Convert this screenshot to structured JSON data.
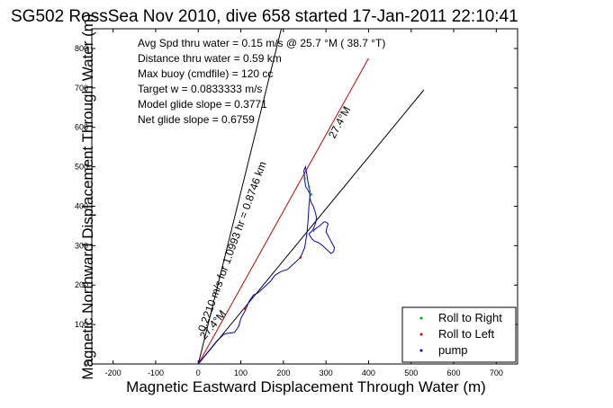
{
  "chart_data": {
    "type": "line",
    "title": "SG502 RossSea Nov 2010, dive 658 started 17-Jan-2011 22:10:41",
    "xlabel": "Magnetic Eastward Displacement Through Water (m)",
    "ylabel": "Magnetic Northward Displacement Through Water (m)",
    "xlim": [
      -250,
      750
    ],
    "ylim": [
      0,
      850
    ],
    "xticks": [
      -200,
      -100,
      0,
      100,
      200,
      300,
      400,
      500,
      600,
      700
    ],
    "yticks": [
      0,
      100,
      200,
      300,
      400,
      500,
      600,
      700,
      800
    ],
    "grid": false,
    "legend_position": "bottom-right",
    "info_lines": [
      "Avg Spd thru water =  0.15 m/s @  25.7 °M ( 38.7 °T)",
      "Distance thru water =  0.59 km",
      "Max buoy (cmdfile) = 120 cc",
      "Target w = 0.0833333 m/s",
      "Model glide slope = 0.3771",
      "Net glide slope = 0.6759"
    ],
    "track_label": "0.2210 m/s for 1.0993 hr = 0.8746 km",
    "heading_labels": [
      "27.4°M",
      "27.4°M"
    ],
    "legend": [
      {
        "label": "Roll to Right",
        "color": "#00aa00"
      },
      {
        "label": "Roll to Left",
        "color": "#dd0000"
      },
      {
        "label": "pump",
        "color": "#0000cc"
      }
    ],
    "series": [
      {
        "color": "#000000",
        "x": [
          0,
          195
        ],
        "y": [
          0,
          850
        ]
      },
      {
        "color": "#000000",
        "x": [
          0,
          530
        ],
        "y": [
          0,
          695
        ]
      },
      {
        "color": "#cc0000",
        "x": [
          0,
          400
        ],
        "y": [
          0,
          775
        ]
      },
      {
        "color": "#0000cc",
        "x": [
          0,
          15,
          30,
          45,
          60,
          70,
          85,
          95,
          100,
          110,
          120,
          130,
          140,
          150,
          160,
          170,
          180,
          195,
          210,
          225,
          240,
          250,
          255,
          258,
          260,
          263,
          258,
          252,
          250,
          248,
          252,
          255,
          258,
          262,
          262,
          265,
          270,
          275,
          278,
          275,
          270,
          265,
          260,
          265,
          272,
          282,
          292,
          302,
          312,
          318,
          320,
          315,
          310,
          305,
          300,
          302,
          305,
          300,
          295,
          290,
          285,
          278,
          272,
          270
        ],
        "y": [
          0,
          20,
          40,
          60,
          75,
          78,
          80,
          95,
          115,
          135,
          160,
          175,
          180,
          190,
          200,
          210,
          225,
          235,
          240,
          255,
          270,
          295,
          330,
          365,
          400,
          430,
          440,
          450,
          470,
          490,
          500,
          480,
          460,
          440,
          420,
          410,
          400,
          385,
          370,
          355,
          342,
          335,
          330,
          320,
          312,
          308,
          300,
          290,
          280,
          285,
          295,
          305,
          315,
          325,
          335,
          345,
          355,
          360,
          360,
          355,
          350,
          345,
          340,
          335
        ]
      }
    ],
    "roll_right_points": {
      "x": [
        260,
        250,
        265
      ],
      "y": [
        450,
        470,
        430
      ]
    },
    "roll_left_points": {
      "x": [
        110,
        240
      ],
      "y": [
        140,
        270
      ]
    }
  }
}
